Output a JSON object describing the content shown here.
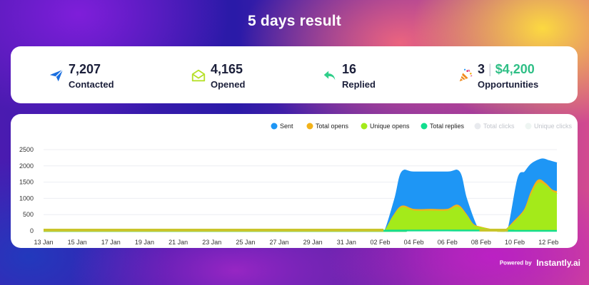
{
  "header": {
    "title": "5 days result"
  },
  "stats": {
    "contacted": {
      "value": "7,207",
      "label": "Contacted"
    },
    "opened": {
      "value": "4,165",
      "label": "Opened"
    },
    "replied": {
      "value": "16",
      "label": "Replied"
    },
    "opportunities": {
      "count": "3",
      "separator": "|",
      "amount": "$4,200",
      "label": "Opportunities"
    }
  },
  "colors": {
    "sent": "#1e96f5",
    "total_opens": "#f2b21a",
    "unique_opens": "#a4ea1a",
    "total_replies": "#12de8e",
    "total_clicks": "#e8eaee",
    "unique_clicks": "#eef5f2",
    "baseline": "#c9c52b",
    "money": "#2fbf86"
  },
  "chart_data": {
    "type": "area",
    "title": "",
    "xlabel": "",
    "ylabel": "",
    "ylim": [
      0,
      2500
    ],
    "yticks": [
      0,
      500,
      1000,
      1500,
      2000,
      2500
    ],
    "xrange": [
      0,
      30.5
    ],
    "xtick_labels": [
      "13 Jan",
      "15 Jan",
      "17 Jan",
      "19 Jan",
      "21 Jan",
      "23 Jan",
      "25 Jan",
      "27 Jan",
      "29 Jan",
      "31 Jan",
      "02 Feb",
      "04 Feb",
      "06 Feb",
      "08 Feb",
      "10 Feb",
      "12 Feb"
    ],
    "grid": true,
    "legend_position": "top-right",
    "series": [
      {
        "name": "Sent",
        "key": "sent",
        "active": true,
        "points": [
          [
            0,
            0
          ],
          [
            20,
            0
          ],
          [
            20.3,
            0
          ],
          [
            20.9,
            1000
          ],
          [
            21.3,
            1800
          ],
          [
            22,
            1800
          ],
          [
            24,
            1800
          ],
          [
            24.7,
            1800
          ],
          [
            25.1,
            1000
          ],
          [
            25.7,
            150
          ],
          [
            26,
            50
          ],
          [
            27.2,
            0
          ],
          [
            27.6,
            0
          ],
          [
            28.2,
            1600
          ],
          [
            28.6,
            1800
          ],
          [
            29,
            2050
          ],
          [
            29.6,
            2200
          ],
          [
            30,
            2150
          ],
          [
            30.5,
            2080
          ]
        ]
      },
      {
        "name": "Total opens",
        "key": "total_opens",
        "active": true,
        "points": [
          [
            0,
            0
          ],
          [
            20,
            0
          ],
          [
            20.3,
            0
          ],
          [
            20.8,
            450
          ],
          [
            21.3,
            750
          ],
          [
            22,
            650
          ],
          [
            23,
            650
          ],
          [
            24,
            650
          ],
          [
            24.6,
            780
          ],
          [
            25.1,
            500
          ],
          [
            25.5,
            200
          ],
          [
            26,
            100
          ],
          [
            27,
            0
          ],
          [
            27.4,
            0
          ],
          [
            28,
            300
          ],
          [
            28.6,
            650
          ],
          [
            29,
            1200
          ],
          [
            29.4,
            1550
          ],
          [
            29.8,
            1450
          ],
          [
            30.2,
            1250
          ],
          [
            30.5,
            1200
          ]
        ]
      },
      {
        "name": "Unique opens",
        "key": "unique_opens",
        "active": true,
        "points": [
          [
            0,
            0
          ],
          [
            20,
            0
          ],
          [
            20.3,
            0
          ],
          [
            20.8,
            420
          ],
          [
            21.3,
            700
          ],
          [
            22,
            600
          ],
          [
            23,
            600
          ],
          [
            24,
            600
          ],
          [
            24.6,
            720
          ],
          [
            25.1,
            460
          ],
          [
            25.5,
            170
          ],
          [
            26,
            80
          ],
          [
            27,
            0
          ],
          [
            27.4,
            0
          ],
          [
            28,
            250
          ],
          [
            28.6,
            600
          ],
          [
            29,
            1100
          ],
          [
            29.4,
            1450
          ],
          [
            29.8,
            1380
          ],
          [
            30.2,
            1200
          ],
          [
            30.5,
            1130
          ]
        ]
      },
      {
        "name": "Total replies",
        "key": "total_replies",
        "active": true,
        "points": [
          [
            0,
            0
          ],
          [
            20,
            0
          ],
          [
            20.3,
            0
          ],
          [
            20.5,
            10
          ],
          [
            27.5,
            10
          ],
          [
            27.6,
            0
          ],
          [
            30.5,
            0
          ]
        ]
      },
      {
        "name": "Total clicks",
        "key": "total_clicks",
        "active": false,
        "points": []
      },
      {
        "name": "Unique clicks",
        "key": "unique_clicks",
        "active": false,
        "points": []
      }
    ]
  },
  "footer": {
    "powered_by": "Powered by",
    "brand": "Instantly.ai"
  }
}
